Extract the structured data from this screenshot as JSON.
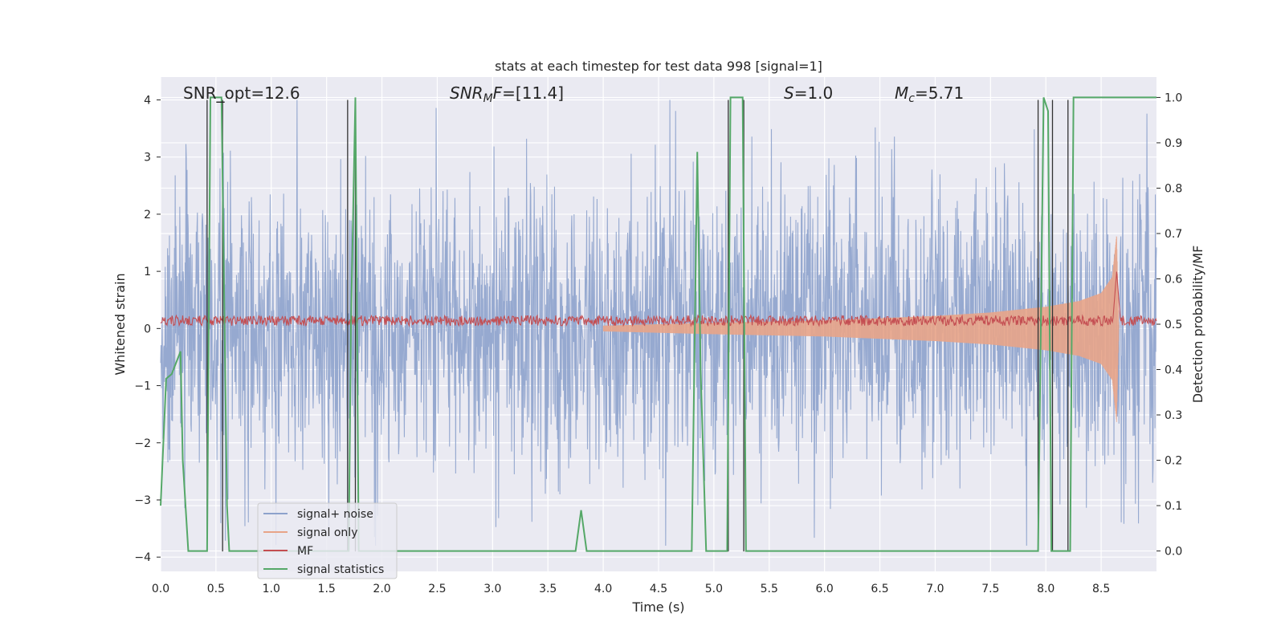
{
  "chart_data": {
    "type": "line",
    "title": "stats at each timestep for test data 998 [signal=1]",
    "xlabel": "Time (s)",
    "ylabel": "Whitened strain",
    "y2label": "Detection probability/MF",
    "xlim": [
      0.0,
      9.0
    ],
    "ylim": [
      -4.25,
      4.4
    ],
    "y2lim": [
      -0.045,
      1.045
    ],
    "x_ticks": [
      "0.0",
      "0.5",
      "1.0",
      "1.5",
      "2.0",
      "2.5",
      "3.0",
      "3.5",
      "4.0",
      "4.5",
      "5.0",
      "5.5",
      "6.0",
      "6.5",
      "7.0",
      "7.5",
      "8.0",
      "8.5"
    ],
    "y_ticks": [
      "-4",
      "-3",
      "-2",
      "-1",
      "0",
      "1",
      "2",
      "3",
      "4"
    ],
    "y2_ticks": [
      "0.0",
      "0.1",
      "0.2",
      "0.3",
      "0.4",
      "0.5",
      "0.6",
      "0.7",
      "0.8",
      "0.9",
      "1.0"
    ],
    "grid": true,
    "legend_position": "lower-left",
    "annotations": {
      "snr_opt": "SNR_opt=12.6",
      "snr_mf_italic": "SNR",
      "snr_mf_sub": "M",
      "snr_mf_italic2": "F",
      "snr_mf_rest": "=[11.4]",
      "s_italic": "S",
      "s_rest": "=1.0",
      "mc_italic": "M",
      "mc_sub": "c",
      "mc_rest": "=5.71"
    },
    "series": [
      {
        "name": "signal+ noise",
        "color": "#8da2cc",
        "axis": "left",
        "description_range": [
          -3.8,
          4.0
        ]
      },
      {
        "name": "signal only",
        "color": "#e8a488",
        "axis": "left",
        "envelope": {
          "x": [
            4.0,
            5.0,
            6.0,
            7.0,
            7.5,
            8.0,
            8.3,
            8.5,
            8.6,
            8.64,
            8.66
          ],
          "amplitude": [
            0.05,
            0.1,
            0.14,
            0.22,
            0.28,
            0.38,
            0.48,
            0.62,
            0.9,
            1.65,
            0.0
          ]
        }
      },
      {
        "name": "MF",
        "color": "#c44e52",
        "axis": "left",
        "baseline": 0.12,
        "spike": {
          "x": 8.64,
          "y": 1.0
        }
      },
      {
        "name": "signal statistics",
        "color": "#55a868",
        "axis": "right",
        "x": [
          0.0,
          0.05,
          0.1,
          0.18,
          0.2,
          0.25,
          0.42,
          0.45,
          0.5,
          0.55,
          0.6,
          0.62,
          1.7,
          1.72,
          1.76,
          1.79,
          3.75,
          3.8,
          3.85,
          4.8,
          4.85,
          4.88,
          4.93,
          5.12,
          5.15,
          5.2,
          5.26,
          5.29,
          7.93,
          7.98,
          8.02,
          8.05,
          8.1,
          8.15,
          8.22,
          8.25,
          8.35,
          9.0
        ],
        "y": [
          0.1,
          0.38,
          0.39,
          0.44,
          0.2,
          0.0,
          0.0,
          1.0,
          1.0,
          1.0,
          0.1,
          0.0,
          0.0,
          0.5,
          1.0,
          0.0,
          0.0,
          0.09,
          0.0,
          0.0,
          0.88,
          0.4,
          0.0,
          0.0,
          1.0,
          1.0,
          1.0,
          0.0,
          0.0,
          1.0,
          0.97,
          0.0,
          0.0,
          0.0,
          0.0,
          1.0,
          1.0,
          1.0
        ]
      },
      {
        "name": "markers",
        "color": "#333333",
        "axis": "left",
        "legend": false,
        "x": [
          0.42,
          0.56,
          1.69,
          1.76,
          5.13,
          5.27,
          7.93,
          8.06,
          8.2
        ]
      }
    ],
    "legend": [
      "signal+ noise",
      "signal only",
      "MF",
      "signal statistics"
    ]
  }
}
